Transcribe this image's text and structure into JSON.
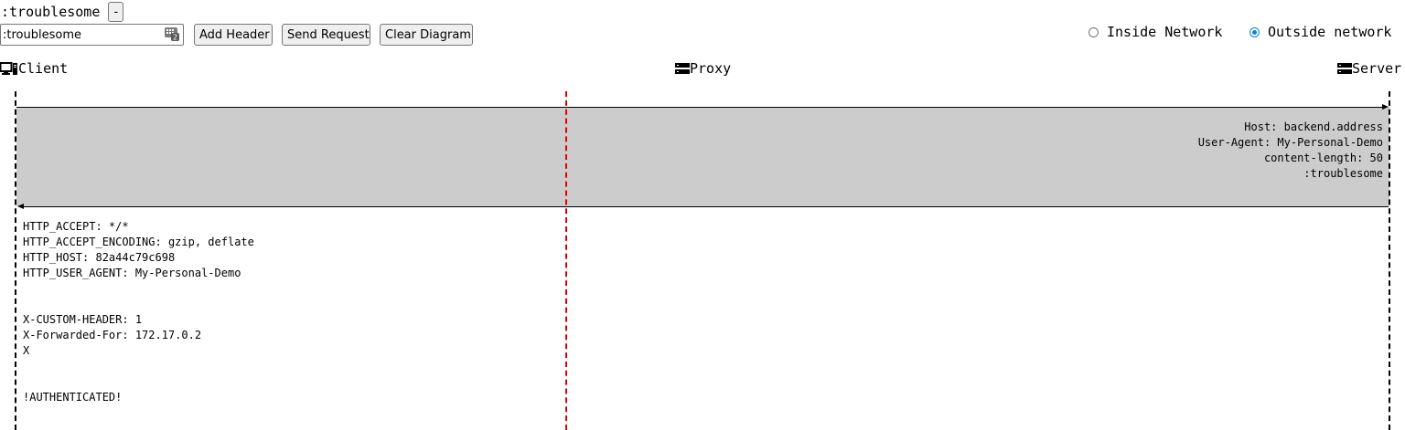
{
  "header_row": {
    "name": ":troublesome",
    "remove_label": "-"
  },
  "controls": {
    "input_value": ":troublesome",
    "add_header_label": "Add Header",
    "send_request_label": "Send Request",
    "clear_diagram_label": "Clear Diagram"
  },
  "network": {
    "options": [
      {
        "label": "Inside Network",
        "checked": false
      },
      {
        "label": "Outside network",
        "checked": true
      }
    ]
  },
  "participants": {
    "client": "Client",
    "proxy": "Proxy",
    "server": "Server"
  },
  "request_headers": [
    "Host: backend.address",
    "User-Agent: My-Personal-Demo",
    "content-length: 50",
    ":troublesome"
  ],
  "response_lines": [
    "HTTP_ACCEPT: */*",
    "HTTP_ACCEPT_ENCODING: gzip, deflate",
    "HTTP_HOST: 82a44c79c698",
    "HTTP_USER_AGENT: My-Personal-Demo",
    "",
    "",
    "X-CUSTOM-HEADER: 1",
    "X-Forwarded-For: 172.17.0.2",
    "X",
    "",
    "",
    "!AUTHENTICATED!"
  ],
  "colors": {
    "band": "#cccccc",
    "proxy_line": "#e00000",
    "radio_accent": "#0a84d6"
  }
}
